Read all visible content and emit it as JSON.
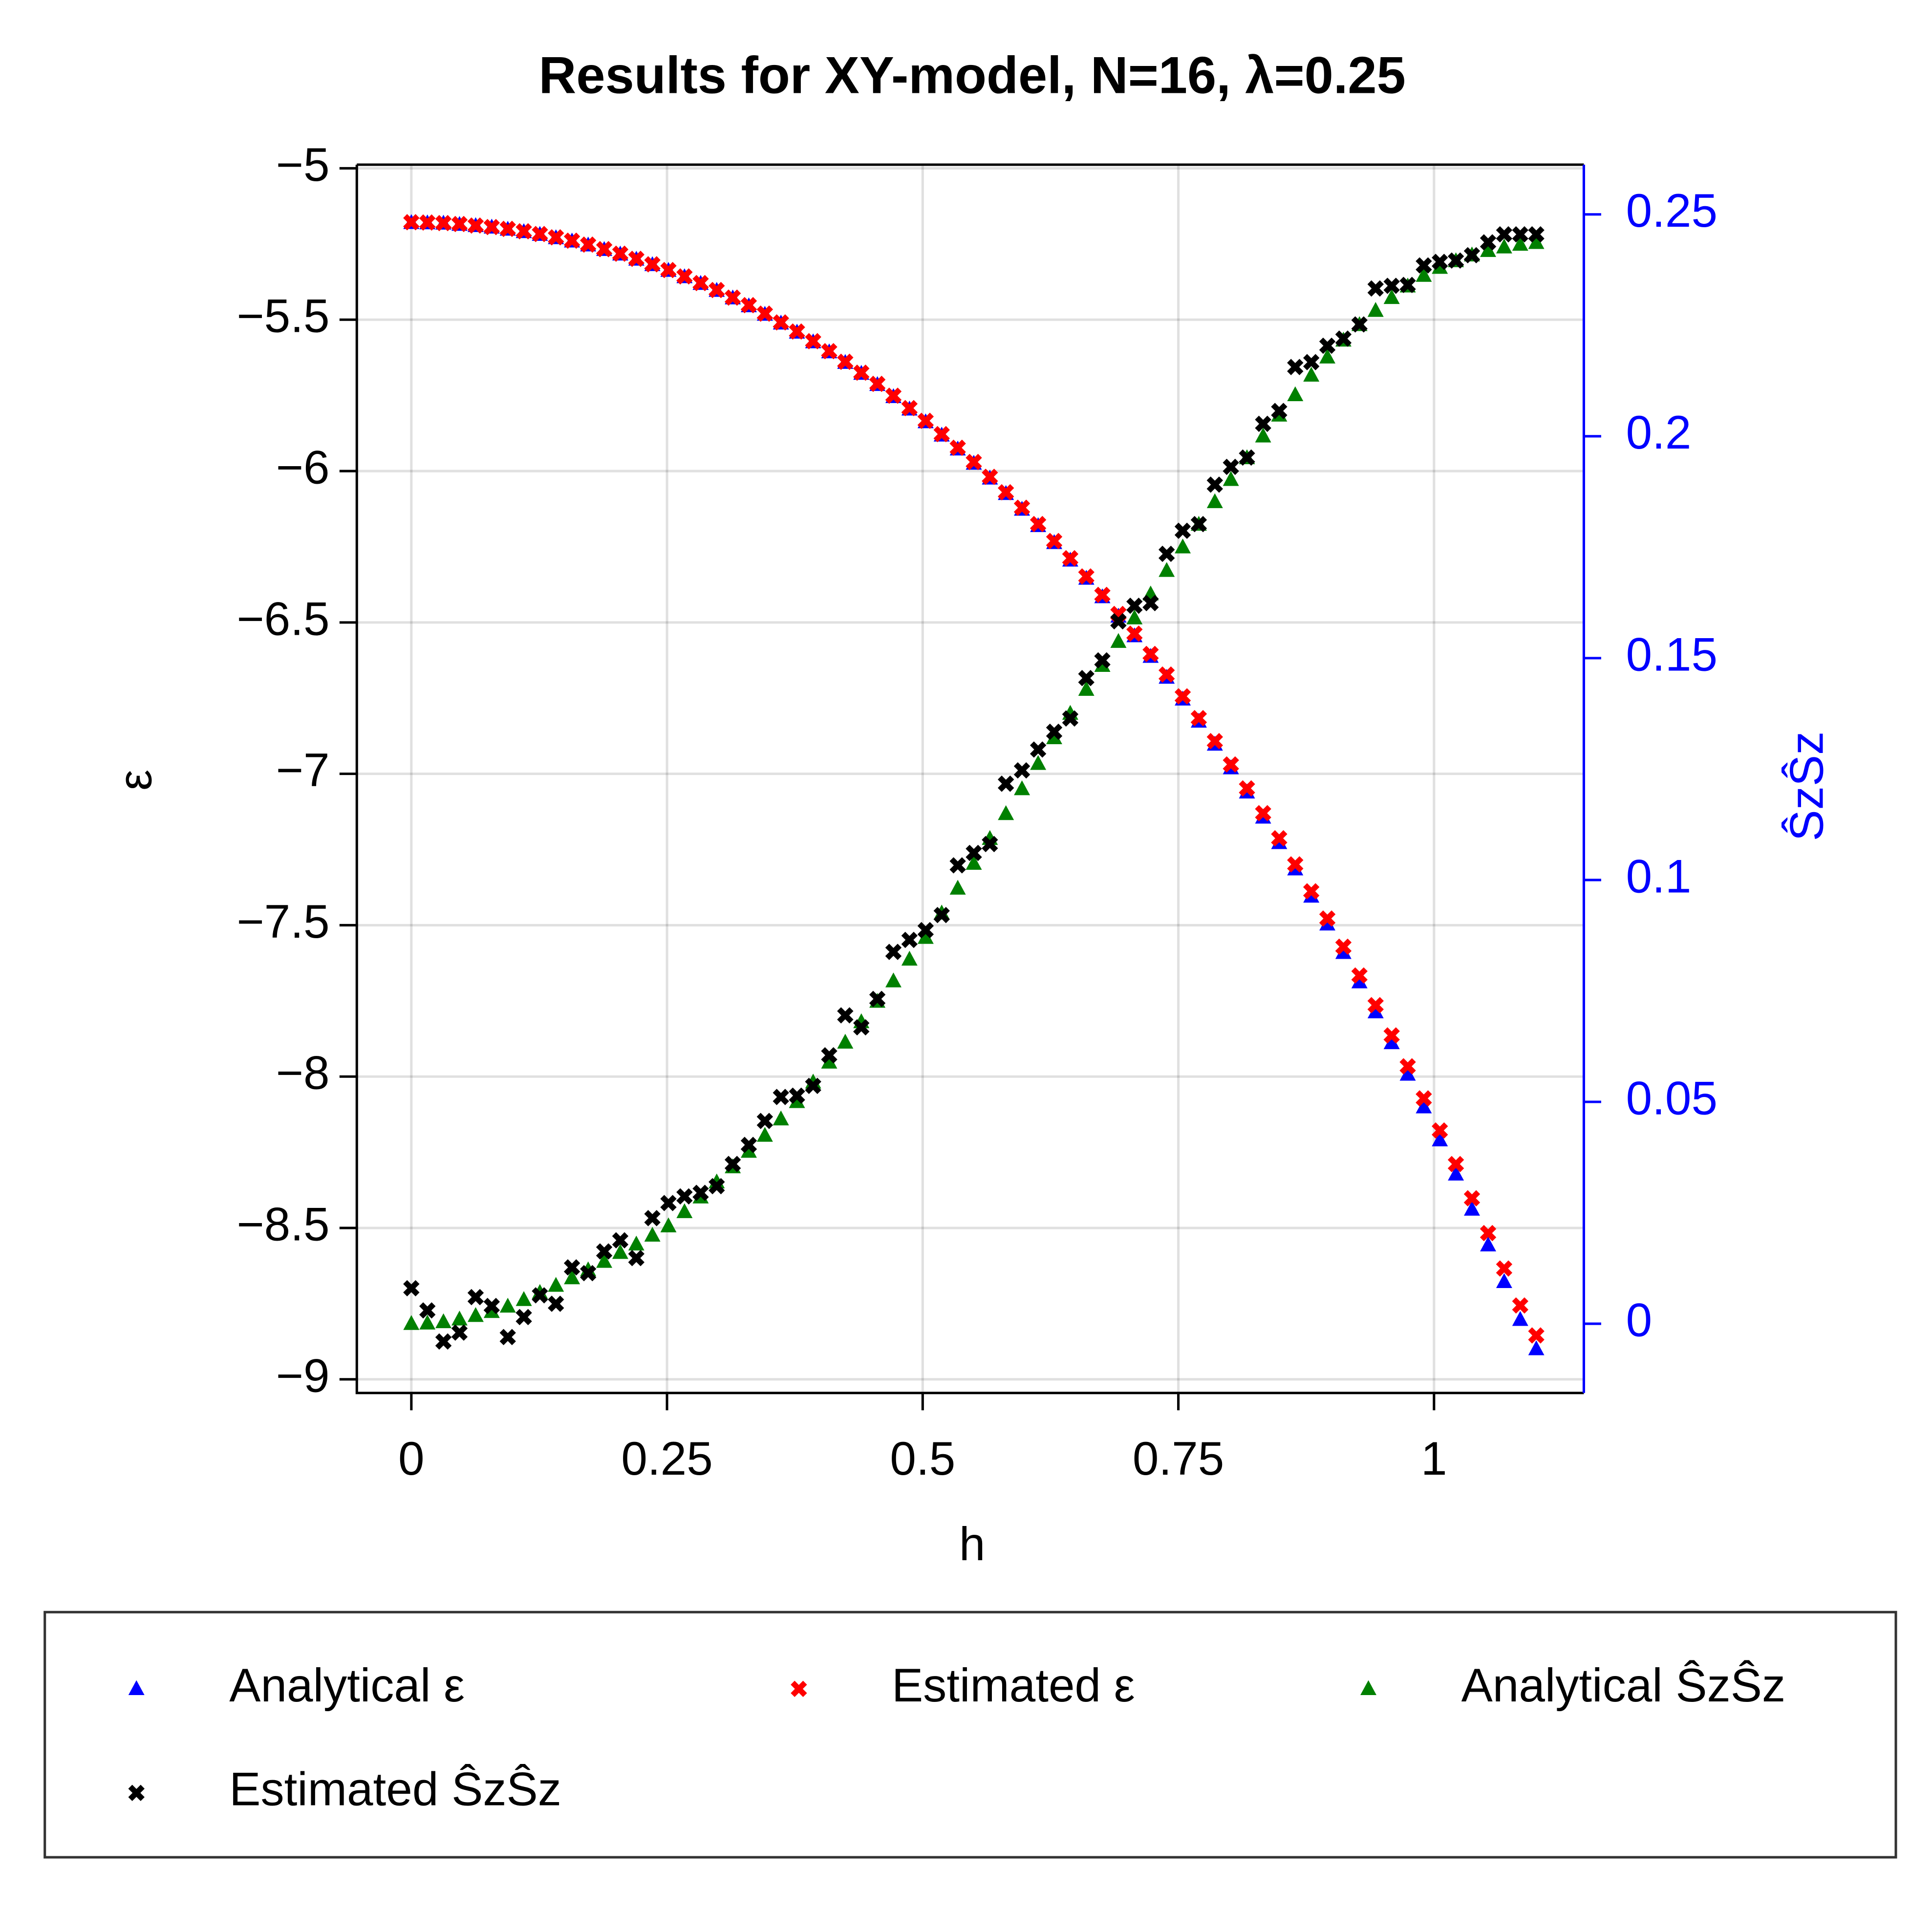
{
  "chart_data": {
    "type": "scatter",
    "title": "Results for XY-model, N=16, λ=0.25",
    "xlabel": "h",
    "ylabel": "ε",
    "y2label": "ŜzŜz",
    "xlim": [
      -0.0533,
      1.1465
    ],
    "ylim": [
      -9.045,
      -4.988
    ],
    "y2lim": [
      -0.0156,
      0.2612
    ],
    "xticks": [
      0,
      0.25,
      0.5,
      0.75,
      1
    ],
    "yticks": [
      {
        "value": -5,
        "label": "−5"
      },
      {
        "value": -5.5,
        "label": "−5.5"
      },
      {
        "value": -6,
        "label": "−6"
      },
      {
        "value": -6.5,
        "label": "−6.5"
      },
      {
        "value": -7,
        "label": "−7"
      },
      {
        "value": -7.5,
        "label": "−7.5"
      },
      {
        "value": -8,
        "label": "−8"
      },
      {
        "value": -8.5,
        "label": "−8.5"
      },
      {
        "value": -9,
        "label": "−9"
      }
    ],
    "y2ticks": [
      0,
      0.05,
      0.1,
      0.15,
      0.2,
      0.25
    ],
    "y2_color": "#0000ff",
    "grid": true,
    "legend": "bottom",
    "x": [
      0,
      0.0157,
      0.0314,
      0.0471,
      0.0629,
      0.0786,
      0.0943,
      0.11,
      0.1257,
      0.1414,
      0.1571,
      0.1729,
      0.1886,
      0.2043,
      0.22,
      0.2357,
      0.2514,
      0.2671,
      0.2829,
      0.2986,
      0.3143,
      0.33,
      0.3457,
      0.3614,
      0.3771,
      0.3929,
      0.4086,
      0.4243,
      0.44,
      0.4557,
      0.4714,
      0.4871,
      0.5029,
      0.5186,
      0.5343,
      0.55,
      0.5657,
      0.5814,
      0.5971,
      0.6129,
      0.6286,
      0.6443,
      0.66,
      0.6757,
      0.6914,
      0.7071,
      0.7229,
      0.7386,
      0.7543,
      0.77,
      0.7857,
      0.8014,
      0.8171,
      0.8329,
      0.8486,
      0.8643,
      0.88,
      0.8957,
      0.9114,
      0.9271,
      0.9429,
      0.9586,
      0.9743,
      0.99,
      1.0057,
      1.0214,
      1.0371,
      1.0529,
      1.0686,
      1.0843,
      1.1
    ],
    "series": [
      {
        "name": "Analytical ε",
        "color": "#0000ff",
        "marker": "triangle",
        "axis": "y",
        "values": [
          -5.18,
          -5.181,
          -5.182,
          -5.186,
          -5.19,
          -5.195,
          -5.202,
          -5.21,
          -5.219,
          -5.23,
          -5.241,
          -5.254,
          -5.269,
          -5.284,
          -5.301,
          -5.319,
          -5.338,
          -5.359,
          -5.381,
          -5.404,
          -5.429,
          -5.455,
          -5.483,
          -5.512,
          -5.542,
          -5.574,
          -5.607,
          -5.642,
          -5.678,
          -5.715,
          -5.755,
          -5.796,
          -5.838,
          -5.882,
          -5.928,
          -5.975,
          -6.024,
          -6.075,
          -6.127,
          -6.181,
          -6.237,
          -6.295,
          -6.355,
          -6.416,
          -6.48,
          -6.545,
          -6.613,
          -6.682,
          -6.754,
          -6.827,
          -6.903,
          -6.981,
          -7.061,
          -7.144,
          -7.228,
          -7.315,
          -7.405,
          -7.497,
          -7.591,
          -7.688,
          -7.787,
          -7.889,
          -7.993,
          -8.101,
          -8.21,
          -8.323,
          -8.439,
          -8.557,
          -8.678,
          -8.803,
          -8.9
        ]
      },
      {
        "name": "Estimated ε",
        "color": "#ff0000",
        "marker": "cross",
        "axis": "y",
        "values": [
          -5.178,
          -5.179,
          -5.181,
          -5.184,
          -5.189,
          -5.194,
          -5.2,
          -5.208,
          -5.217,
          -5.228,
          -5.239,
          -5.252,
          -5.267,
          -5.282,
          -5.299,
          -5.317,
          -5.336,
          -5.357,
          -5.379,
          -5.402,
          -5.427,
          -5.452,
          -5.48,
          -5.509,
          -5.539,
          -5.571,
          -5.604,
          -5.639,
          -5.675,
          -5.712,
          -5.751,
          -5.792,
          -5.834,
          -5.878,
          -5.923,
          -5.97,
          -6.019,
          -6.07,
          -6.121,
          -6.175,
          -6.231,
          -6.288,
          -6.348,
          -6.409,
          -6.472,
          -6.537,
          -6.604,
          -6.672,
          -6.744,
          -6.816,
          -6.892,
          -6.969,
          -7.048,
          -7.13,
          -7.213,
          -7.299,
          -7.388,
          -7.478,
          -7.571,
          -7.666,
          -7.764,
          -7.864,
          -7.966,
          -8.072,
          -8.178,
          -8.289,
          -8.402,
          -8.517,
          -8.634,
          -8.756,
          -8.855
        ]
      },
      {
        "name": "Analytical ŜzŜz",
        "color": "#008000",
        "marker": "triangle",
        "axis": "y2",
        "values": [
          0,
          0.0001,
          0.0004,
          0.001,
          0.0018,
          0.0027,
          0.0039,
          0.0054,
          0.007,
          0.0086,
          0.0103,
          0.0121,
          0.014,
          0.016,
          0.0179,
          0.0199,
          0.022,
          0.0252,
          0.0285,
          0.0319,
          0.0353,
          0.0388,
          0.0424,
          0.0461,
          0.05,
          0.0544,
          0.0589,
          0.0634,
          0.068,
          0.0726,
          0.0772,
          0.0821,
          0.087,
          0.0925,
          0.0981,
          0.1037,
          0.1093,
          0.1149,
          0.1205,
          0.1262,
          0.132,
          0.1375,
          0.1429,
          0.1483,
          0.1537,
          0.159,
          0.1644,
          0.1697,
          0.175,
          0.1801,
          0.1852,
          0.1902,
          0.1951,
          0.2,
          0.2047,
          0.2093,
          0.2137,
          0.2178,
          0.2216,
          0.2251,
          0.2283,
          0.2312,
          0.2338,
          0.2362,
          0.238,
          0.2395,
          0.2408,
          0.2418,
          0.2426,
          0.2432,
          0.2436
        ]
      },
      {
        "name": "Estimated ŜzŜz",
        "color": "#000000",
        "marker": "cross",
        "axis": "y2",
        "values": [
          0.008,
          0.003,
          -0.004,
          -0.002,
          0.006,
          0.004,
          -0.003,
          0.0015,
          0.0064,
          0.0045,
          0.0127,
          0.0114,
          0.0163,
          0.0188,
          0.0148,
          0.0238,
          0.0272,
          0.0287,
          0.0295,
          0.031,
          0.036,
          0.0403,
          0.0457,
          0.0511,
          0.0514,
          0.0536,
          0.0605,
          0.0695,
          0.0668,
          0.0732,
          0.0838,
          0.0865,
          0.0887,
          0.0921,
          0.1033,
          0.1061,
          0.1081,
          0.1217,
          0.1247,
          0.1294,
          0.1334,
          0.1364,
          0.1455,
          0.1495,
          0.1583,
          0.1618,
          0.1624,
          0.1735,
          0.1787,
          0.1802,
          0.1891,
          0.1931,
          0.1952,
          0.2028,
          0.2057,
          0.2156,
          0.2167,
          0.2204,
          0.222,
          0.2252,
          0.2333,
          0.2339,
          0.2341,
          0.2385,
          0.2393,
          0.2396,
          0.2408,
          0.2437,
          0.2455,
          0.2455,
          0.2455
        ]
      }
    ]
  }
}
